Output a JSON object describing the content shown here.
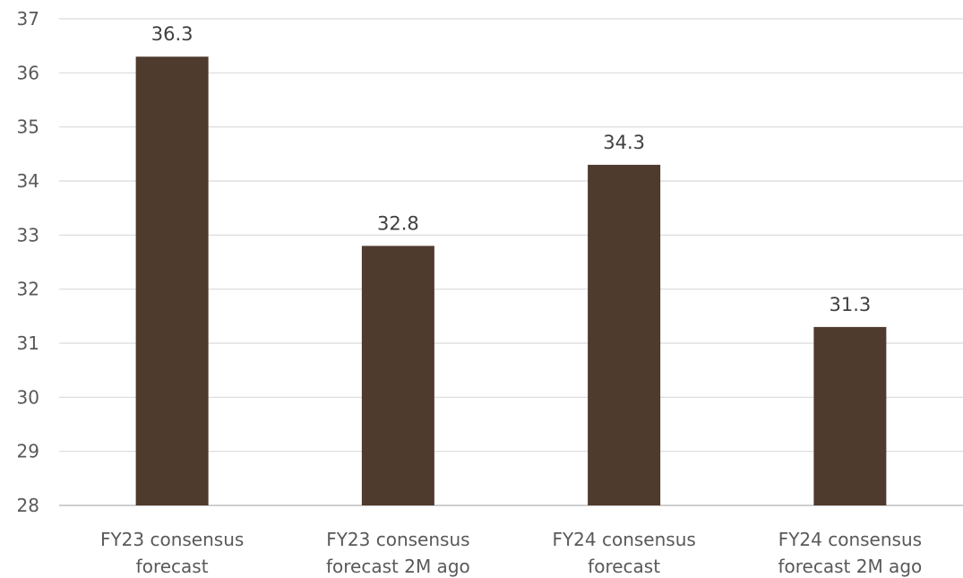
{
  "chart_data": {
    "type": "bar",
    "categories": [
      [
        "FY23 consensus",
        "forecast"
      ],
      [
        "FY23 consensus",
        "forecast 2M ago"
      ],
      [
        "FY24 consensus",
        "forecast"
      ],
      [
        "FY24 consensus",
        "forecast 2M ago"
      ]
    ],
    "values": [
      36.3,
      32.8,
      34.3,
      31.3
    ],
    "data_labels": [
      "36.3",
      "32.8",
      "34.3",
      "31.3"
    ],
    "y_ticks": [
      "28",
      "29",
      "30",
      "31",
      "32",
      "33",
      "34",
      "35",
      "36",
      "37"
    ],
    "ylim": [
      28,
      37
    ],
    "grid": true,
    "legend": "none",
    "colors": {
      "bar": "#4e3b2e",
      "grid": "#d9d9d9",
      "axis": "#bfbfbf"
    }
  }
}
